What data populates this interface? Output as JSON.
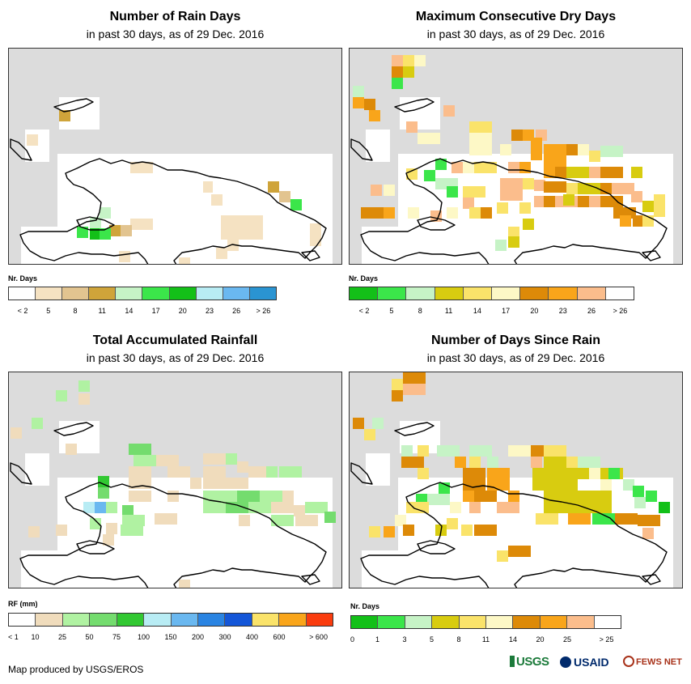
{
  "panels": [
    {
      "id": "rain-days",
      "title": "Number of Rain Days",
      "subtitle": "in past 30 days, as of 29 Dec. 2016",
      "legend_title": "Nr. Days",
      "legend_colors": [
        "#ffffff",
        "#f5e2c2",
        "#e2c490",
        "#cfa43a",
        "#c6f3c6",
        "#3be64a",
        "#13c018",
        "#b8ecf4",
        "#6ab8f0",
        "#2a94d2"
      ],
      "legend_labels": [
        "< 2",
        "5",
        "8",
        "11",
        "14",
        "17",
        "20",
        "23",
        "26",
        "> 26"
      ],
      "label_mode": "under"
    },
    {
      "id": "dry-days",
      "title": "Maximum Consecutive Dry Days",
      "subtitle": "in past 30 days, as of 29 Dec. 2016",
      "legend_title": "Nr. Days",
      "legend_colors": [
        "#13c018",
        "#3be64a",
        "#c6f3c6",
        "#d8cc10",
        "#fae36a",
        "#fdf8c6",
        "#dd8a08",
        "#f9a51a",
        "#fbbd8c",
        "#ffffff"
      ],
      "legend_labels": [
        "< 2",
        "5",
        "8",
        "11",
        "14",
        "17",
        "20",
        "23",
        "26",
        "> 26"
      ],
      "label_mode": "under"
    },
    {
      "id": "rainfall",
      "title": "Total Accumulated Rainfall",
      "subtitle": "in past 30 days, as of 29 Dec. 2016",
      "legend_title": "RF (mm)",
      "legend_colors": [
        "#ffffff",
        "#f0dcbc",
        "#b0f2a2",
        "#74dc6e",
        "#32c832",
        "#b8ecf4",
        "#6ab8f0",
        "#2a84e2",
        "#1456d8",
        "#fae36a",
        "#f9a51a",
        "#fa3c0e"
      ],
      "legend_labels": [
        "< 1",
        "10",
        "25",
        "50",
        "75",
        "100",
        "150",
        "200",
        "300",
        "400",
        "600",
        "> 600"
      ],
      "label_mode": "between"
    },
    {
      "id": "days-since",
      "title": "Number of Days Since Rain",
      "subtitle": "in past 30 days, as of 29 Dec. 2016",
      "legend_title": "Nr. Days",
      "legend_colors": [
        "#13c018",
        "#3be64a",
        "#c6f3c6",
        "#d8cc10",
        "#fae36a",
        "#fdf8c6",
        "#dd8a08",
        "#f9a51a",
        "#fbbd8c",
        "#ffffff"
      ],
      "legend_labels": [
        "0",
        "1",
        "3",
        "5",
        "8",
        "11",
        "14",
        "20",
        "25",
        "> 25"
      ],
      "label_mode": "between"
    }
  ],
  "footer": "Map produced by USGS/EROS",
  "logos": [
    "USGS",
    "USAID",
    "FEWS NET"
  ]
}
